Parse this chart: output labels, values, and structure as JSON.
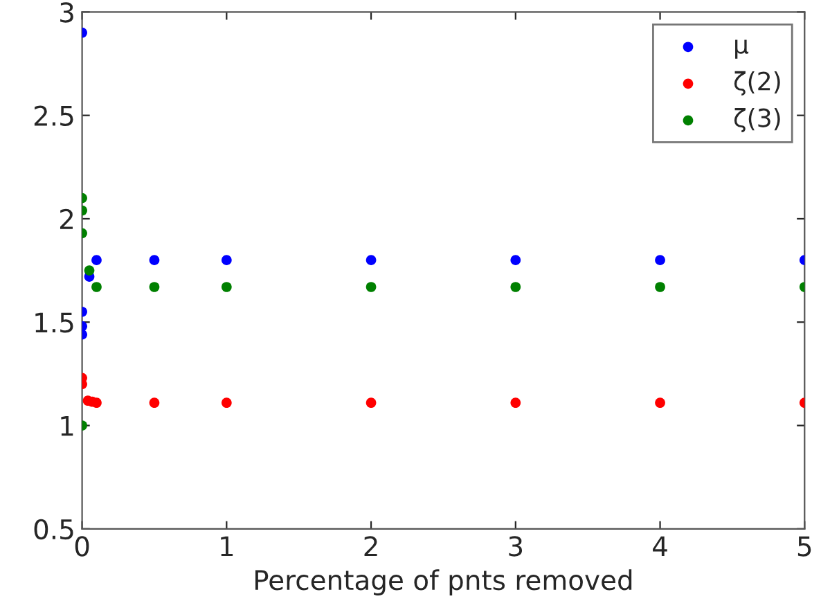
{
  "chart_data": {
    "type": "scatter",
    "xlabel": "Percentage of pnts removed",
    "xlim": [
      0,
      5
    ],
    "ylim": [
      0.5,
      3
    ],
    "xticks": [
      0,
      1,
      2,
      3,
      4,
      5
    ],
    "yticks": [
      0.5,
      1,
      1.5,
      2,
      2.5,
      3
    ],
    "grid": false,
    "legend": "top right",
    "marker": "circle",
    "series": [
      {
        "name": "μ",
        "color": "#0000ff",
        "x": [
          0,
          0,
          0,
          0,
          0.05,
          0.1,
          0.5,
          1,
          2,
          3,
          4,
          5
        ],
        "values": [
          2.9,
          1.55,
          1.48,
          1.44,
          1.72,
          1.8,
          1.8,
          1.8,
          1.8,
          1.8,
          1.8,
          1.8
        ]
      },
      {
        "name": "ζ(2)",
        "color": "#ff0000",
        "x": [
          0,
          0,
          0.04,
          0.07,
          0.1,
          0.5,
          1,
          2,
          3,
          4,
          5
        ],
        "values": [
          1.23,
          1.2,
          1.12,
          1.115,
          1.11,
          1.11,
          1.11,
          1.11,
          1.11,
          1.11,
          1.11
        ]
      },
      {
        "name": "ζ(3)",
        "color": "#008000",
        "x": [
          0,
          0,
          0,
          0,
          0.05,
          0.1,
          0.5,
          1,
          2,
          3,
          4,
          5
        ],
        "values": [
          2.1,
          2.04,
          1.93,
          1.0,
          1.75,
          1.67,
          1.67,
          1.67,
          1.67,
          1.67,
          1.67,
          1.67
        ]
      }
    ]
  }
}
